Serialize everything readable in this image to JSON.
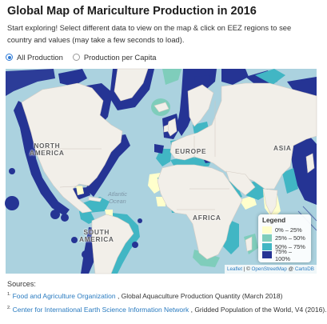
{
  "page": {
    "title": "Global Map of Mariculture Production in 2016",
    "intro": "Start exploring! Select different data to view on the map & click on EEZ regions to see country and values (may take a few seconds to load)."
  },
  "data_selector": {
    "options": [
      {
        "label": "All Production",
        "selected": true
      },
      {
        "label": "Production per Capita",
        "selected": false
      }
    ]
  },
  "map": {
    "continent_labels": {
      "north_america": "NORTH\nAMERICA",
      "south_america": "SOUTH\nAMERICA",
      "europe": "EUROPE",
      "asia": "ASIA",
      "africa": "AFRICA"
    },
    "ocean_labels": {
      "atlantic": "Atlantic\nOcean"
    },
    "colors": {
      "ocean": "#abd2df",
      "land": "#f2efe9",
      "border": "#c9c1ba",
      "class_1": "#ffffcc",
      "class_2": "#7fcdbb",
      "class_3": "#41b6c4",
      "class_4": "#253494"
    },
    "legend": {
      "title": "Legend",
      "items": [
        {
          "label": "0% – 25%",
          "color": "#ffffcc"
        },
        {
          "label": "25% – 50%",
          "color": "#7fcdbb"
        },
        {
          "label": "50% – 75%",
          "color": "#41b6c4"
        },
        {
          "label": "75% – 100%",
          "color": "#253494"
        }
      ]
    },
    "attribution": {
      "leaflet": "Leaflet",
      "separator": " | © ",
      "osm": "OpenStreetMap",
      "at": " @ ",
      "carto": "CartoDB"
    }
  },
  "sources": {
    "heading": "Sources:",
    "refs": [
      {
        "num": "1.",
        "link": "Food and Agriculture Organization",
        "text": " , Global Aquaculture Production Quantity (March 2018)"
      },
      {
        "num": "2.",
        "link": "Center for International Earth Science Information Network",
        "text": " , Gridded Population of the World, V4 (2016)."
      }
    ]
  }
}
